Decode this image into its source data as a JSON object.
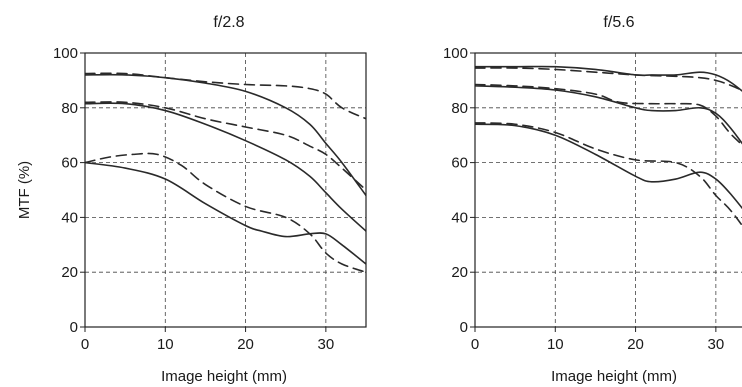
{
  "chart_data": [
    {
      "type": "line",
      "title": "f/2.8",
      "xlabel": "Image height (mm)",
      "ylabel": "MTF (%)",
      "xlim": [
        0,
        35
      ],
      "ylim": [
        0,
        100
      ],
      "x_ticks": [
        0,
        10,
        20,
        30
      ],
      "y_ticks": [
        0,
        20,
        40,
        60,
        80,
        100
      ],
      "grid": true,
      "series": [
        {
          "style": "solid",
          "x": [
            0,
            5,
            10,
            15,
            20,
            25,
            28,
            30,
            32,
            35
          ],
          "y": [
            92,
            92,
            91,
            89,
            86,
            80,
            74,
            67,
            60,
            48
          ]
        },
        {
          "style": "dashed",
          "x": [
            0,
            5,
            10,
            15,
            20,
            25,
            28,
            30,
            32,
            35
          ],
          "y": [
            92.5,
            92.5,
            91,
            89.5,
            88.5,
            88,
            87,
            85,
            80,
            76
          ]
        },
        {
          "style": "solid",
          "x": [
            0,
            5,
            10,
            15,
            20,
            25,
            28,
            30,
            32,
            35
          ],
          "y": [
            81.5,
            81.5,
            79,
            74,
            68,
            61,
            55,
            49,
            43,
            35
          ]
        },
        {
          "style": "dashed",
          "x": [
            0,
            5,
            10,
            15,
            20,
            25,
            28,
            30,
            32,
            35
          ],
          "y": [
            82,
            82,
            80,
            76,
            73,
            70,
            66,
            63,
            58,
            50
          ]
        },
        {
          "style": "solid",
          "x": [
            0,
            5,
            10,
            15,
            20,
            22,
            25,
            28,
            30,
            32,
            35
          ],
          "y": [
            60,
            58,
            54,
            45,
            37,
            35,
            33,
            34,
            34,
            30,
            23
          ]
        },
        {
          "style": "dashed",
          "x": [
            0,
            3,
            6,
            9,
            12,
            15,
            20,
            25,
            28,
            30,
            32,
            35
          ],
          "y": [
            60,
            62,
            63,
            63,
            59,
            52,
            44,
            40,
            34,
            27,
            23,
            20
          ]
        }
      ]
    },
    {
      "type": "line",
      "title": "f/5.6",
      "xlabel": "Image height (mm)",
      "ylabel": "",
      "xlim": [
        0,
        35
      ],
      "ylim": [
        0,
        100
      ],
      "x_ticks": [
        0,
        10,
        20,
        30
      ],
      "y_ticks": [
        0,
        20,
        40,
        60,
        80,
        100
      ],
      "grid": true,
      "series": [
        {
          "style": "solid",
          "x": [
            0,
            5,
            10,
            15,
            20,
            22,
            25,
            28,
            30,
            32,
            35
          ],
          "y": [
            95,
            95,
            95,
            94,
            92,
            92,
            92,
            93,
            92,
            89,
            82
          ]
        },
        {
          "style": "dashed",
          "x": [
            0,
            5,
            10,
            15,
            20,
            25,
            28,
            30,
            32,
            35
          ],
          "y": [
            94.5,
            94.5,
            94,
            93,
            92,
            91.5,
            91,
            90,
            88,
            84
          ]
        },
        {
          "style": "solid",
          "x": [
            0,
            5,
            10,
            15,
            20,
            22,
            25,
            28,
            30,
            32,
            35
          ],
          "y": [
            88,
            87.5,
            86.5,
            84,
            80,
            79,
            79,
            80,
            78,
            72,
            60
          ]
        },
        {
          "style": "dashed",
          "x": [
            0,
            5,
            10,
            15,
            18,
            22,
            25,
            28,
            30,
            32,
            35
          ],
          "y": [
            88.5,
            88,
            87,
            85,
            82,
            81.5,
            81.5,
            81,
            77,
            70,
            62
          ]
        },
        {
          "style": "solid",
          "x": [
            0,
            5,
            10,
            15,
            20,
            22,
            25,
            28,
            30,
            32,
            35
          ],
          "y": [
            74,
            73.5,
            70,
            63,
            55,
            53,
            54,
            56.5,
            54,
            48,
            37
          ]
        },
        {
          "style": "dashed",
          "x": [
            0,
            5,
            10,
            15,
            20,
            25,
            28,
            30,
            32,
            35
          ],
          "y": [
            74.5,
            74,
            71,
            65,
            61,
            60,
            55,
            48,
            42,
            30
          ]
        }
      ]
    }
  ]
}
